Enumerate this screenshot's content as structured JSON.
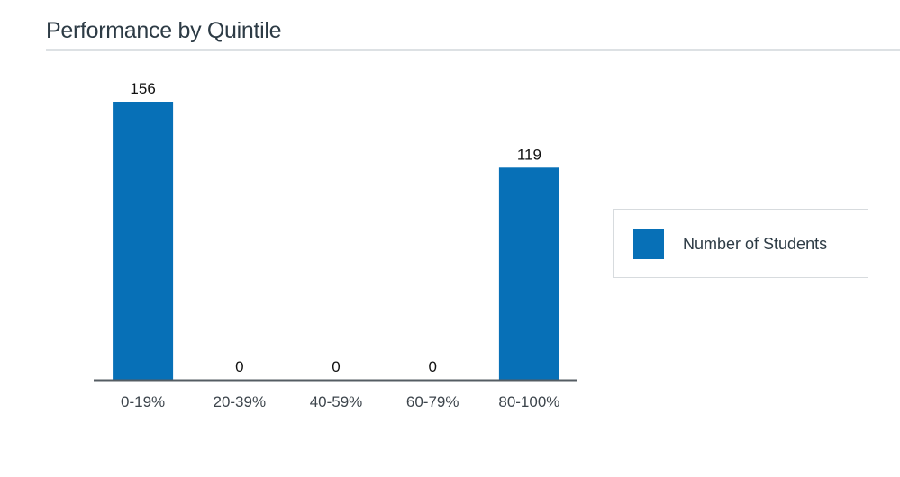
{
  "chart_data": {
    "type": "bar",
    "title": "Performance by Quintile",
    "categories": [
      "0-19%",
      "20-39%",
      "40-59%",
      "60-79%",
      "80-100%"
    ],
    "series": [
      {
        "name": "Number of Students",
        "values": [
          156,
          0,
          0,
          0,
          119
        ],
        "color": "#0770b7"
      }
    ],
    "data_labels": true,
    "grid": false,
    "legend_position": "right",
    "ylim": [
      0,
      156
    ]
  }
}
